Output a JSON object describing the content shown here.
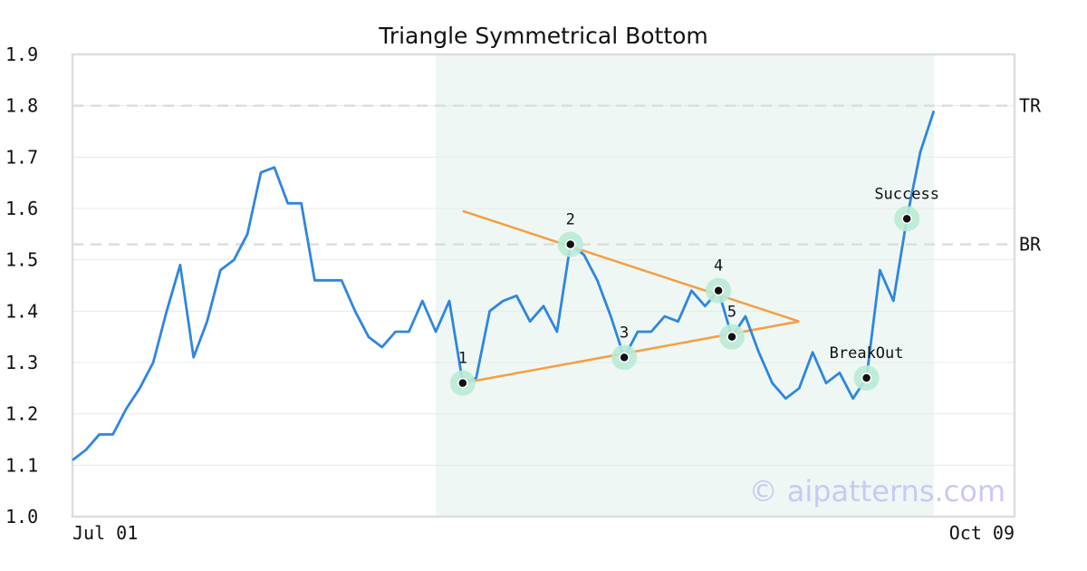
{
  "chart_data": {
    "type": "line",
    "title": "Triangle Symmetrical Bottom",
    "xlabel": "",
    "ylabel": "",
    "ylim": [
      1.0,
      1.9
    ],
    "yticks": [
      "1.0",
      "1.1",
      "1.2",
      "1.3",
      "1.4",
      "1.5",
      "1.6",
      "1.7",
      "1.8",
      "1.9"
    ],
    "xtick_labels": [
      {
        "index": 0,
        "label": "Jul 01"
      },
      {
        "index": 70,
        "label": "Oct 09"
      }
    ],
    "grid": "horizontal",
    "series": [
      {
        "color": "#2e86de",
        "values": [
          1.11,
          1.13,
          1.16,
          1.16,
          1.21,
          1.25,
          1.3,
          1.4,
          1.49,
          1.31,
          1.38,
          1.48,
          1.5,
          1.55,
          1.67,
          1.68,
          1.61,
          1.61,
          1.46,
          1.46,
          1.46,
          1.4,
          1.35,
          1.33,
          1.36,
          1.36,
          1.42,
          1.36,
          1.42,
          1.26,
          1.27,
          1.4,
          1.42,
          1.43,
          1.38,
          1.41,
          1.36,
          1.53,
          1.51,
          1.46,
          1.39,
          1.31,
          1.36,
          1.36,
          1.39,
          1.38,
          1.44,
          1.41,
          1.44,
          1.35,
          1.39,
          1.32,
          1.26,
          1.23,
          1.25,
          1.32,
          1.26,
          1.28,
          1.23,
          1.27,
          1.48,
          1.42,
          1.58,
          1.71,
          1.79
        ]
      }
    ],
    "highlight_region": {
      "start_index": 27,
      "end_index": 64,
      "color": "#eef7f3"
    },
    "levels": [
      {
        "label": "TR",
        "value": 1.8
      },
      {
        "label": "BR",
        "value": 1.53
      }
    ],
    "trendlines": [
      {
        "color": "#f59e42",
        "from": [
          29,
          1.595
        ],
        "to": [
          54,
          1.38
        ]
      },
      {
        "color": "#f59e42",
        "from": [
          29,
          1.26
        ],
        "to": [
          54,
          1.38
        ]
      }
    ],
    "points": [
      {
        "label": "1",
        "index": 29,
        "value": 1.26,
        "label_pos": "above"
      },
      {
        "label": "2",
        "index": 37,
        "value": 1.53,
        "label_pos": "above"
      },
      {
        "label": "3",
        "index": 41,
        "value": 1.31,
        "label_pos": "above"
      },
      {
        "label": "4",
        "index": 48,
        "value": 1.44,
        "label_pos": "above"
      },
      {
        "label": "5",
        "index": 49,
        "value": 1.35,
        "label_pos": "above"
      },
      {
        "label": "BreakOut",
        "index": 59,
        "value": 1.27,
        "label_pos": "above"
      },
      {
        "label": "Success",
        "index": 62,
        "value": 1.58,
        "label_pos": "above"
      }
    ],
    "watermark": "© aipatterns.com"
  }
}
